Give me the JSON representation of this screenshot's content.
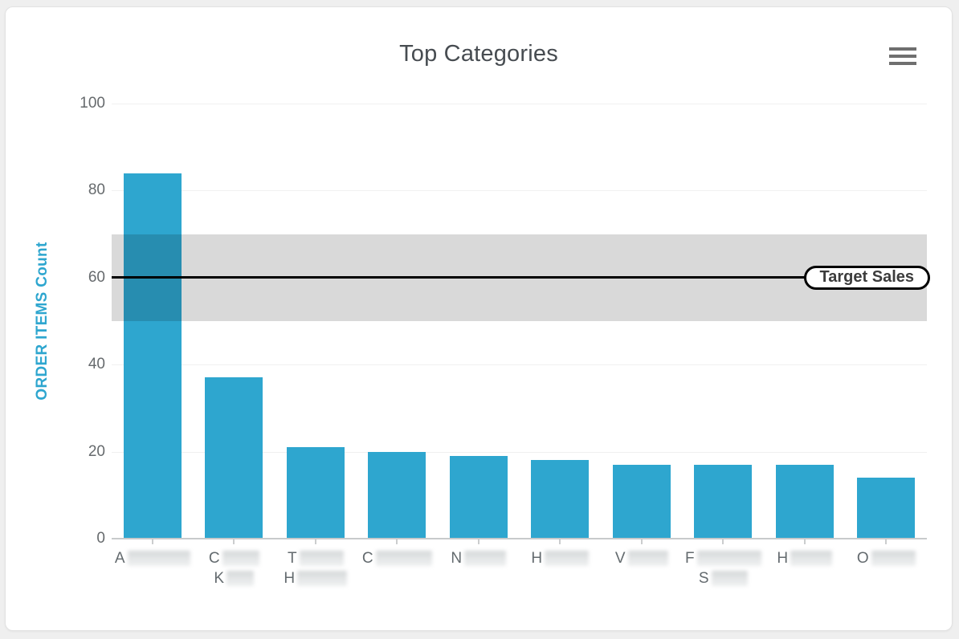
{
  "chart_data": {
    "type": "bar",
    "title": "Top Categories",
    "xlabel": "",
    "ylabel": "ORDER ITEMS Count",
    "ylim": [
      0,
      100
    ],
    "yticks": [
      0,
      20,
      40,
      60,
      80,
      100
    ],
    "grid": true,
    "legend": "none",
    "bar_color": "#2EA6CF",
    "values": [
      84,
      37,
      21,
      20,
      19,
      18,
      17,
      17,
      17,
      14
    ],
    "categories": [
      "A…",
      "C… K…",
      "T… H…",
      "C…",
      "N…",
      "H…",
      "V…",
      "F… S…",
      "H…",
      "O…"
    ],
    "categories_visible_letters": [
      [
        "A"
      ],
      [
        "C",
        "K"
      ],
      [
        "T",
        "H"
      ],
      [
        "C"
      ],
      [
        "N"
      ],
      [
        "H"
      ],
      [
        "V"
      ],
      [
        "F",
        "S"
      ],
      [
        "H"
      ],
      [
        "O"
      ]
    ],
    "redacted_label_widths": [
      [
        78
      ],
      [
        46,
        34
      ],
      [
        55,
        62
      ],
      [
        70
      ],
      [
        52
      ],
      [
        55
      ],
      [
        50
      ],
      [
        80,
        45
      ],
      [
        52
      ],
      [
        55
      ]
    ],
    "categories_note": "Category labels are blurred/redacted in the screenshot; only the leading letters are legible.",
    "plot_band": {
      "from": 50,
      "to": 70,
      "color": "rgba(0,0,0,0.15)"
    },
    "target_line": {
      "value": 60,
      "label": "Target Sales",
      "color": "#000000"
    }
  },
  "colors": {
    "bar": "#2EA6CF",
    "y_axis_title": "#2EA6CF",
    "axis_text": "#666A6D",
    "title_text": "#474C51",
    "gridline": "#F0F0F0",
    "axis_line": "#C8CACB",
    "card_background": "#FFFFFF",
    "page_background": "#EFEFEF"
  },
  "menu": {
    "icon": "hamburger-icon"
  }
}
